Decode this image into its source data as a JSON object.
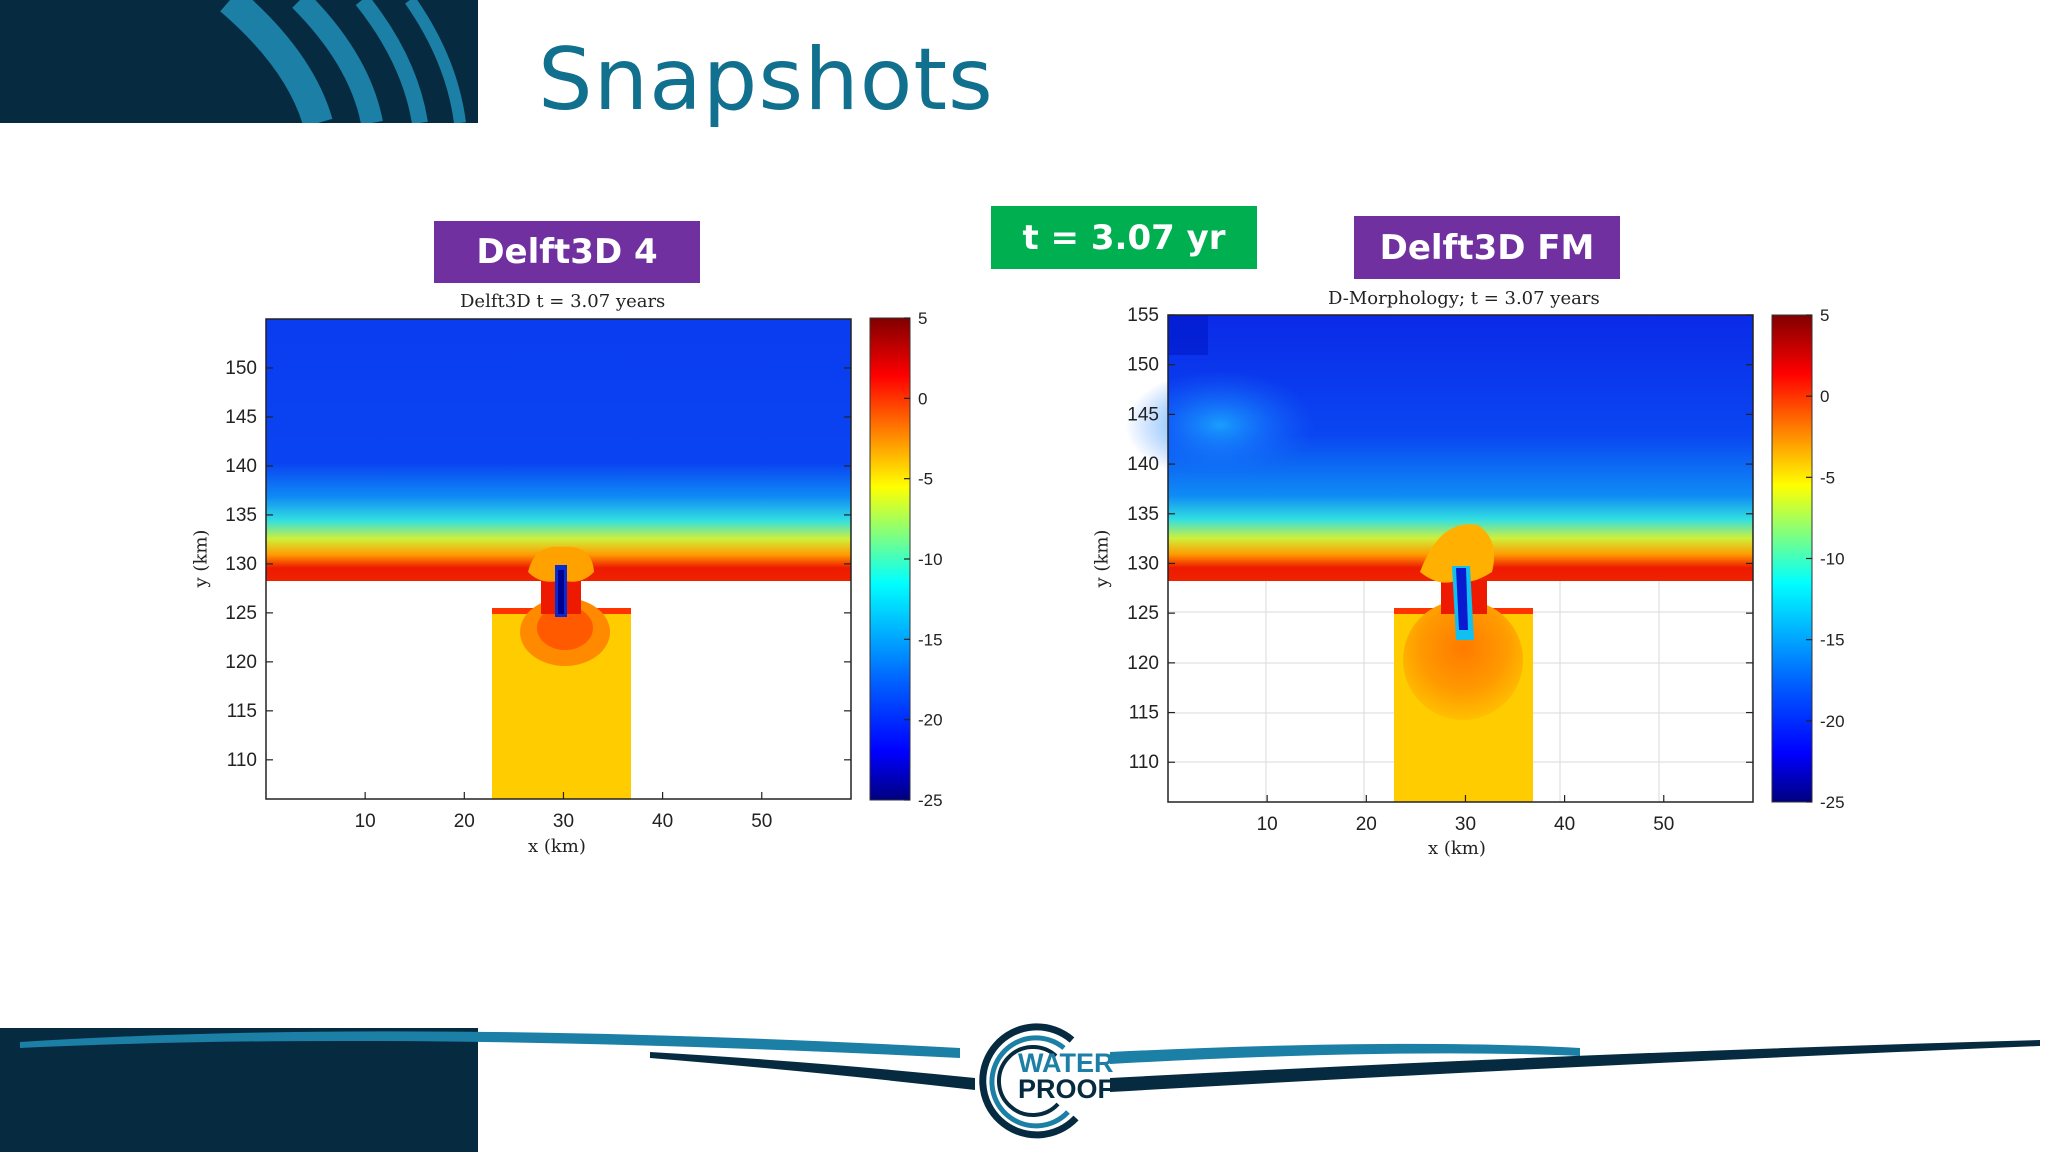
{
  "slide": {
    "title": "Snapshots",
    "label_left": "Delft3D 4",
    "label_right": "Delft3D FM",
    "label_time": "t = 3.07 yr",
    "accent_title": "#12708f",
    "label_purple": "#7030a0",
    "label_green": "#00b050",
    "logo_line1": "WATER",
    "logo_line2": "PROOF",
    "navy": "#062b40",
    "teal": "#1b7fa6"
  },
  "chart_data": [
    {
      "type": "heatmap",
      "title": "Delft3D t = 3.07 years",
      "xlabel": "x (km)",
      "ylabel": "y (km)",
      "xlim": [
        0,
        59
      ],
      "ylim": [
        106,
        155
      ],
      "xticks": [
        10,
        20,
        30,
        40,
        50
      ],
      "yticks": [
        110,
        115,
        120,
        125,
        130,
        135,
        140,
        145,
        150
      ],
      "colorbar": {
        "min": -25,
        "max": 5,
        "ticks": [
          5,
          0,
          -5,
          -10,
          -15,
          -20,
          -25
        ]
      },
      "grid": false
    },
    {
      "type": "heatmap",
      "title": "D-Morphology; t = 3.07 years",
      "xlabel": "x (km)",
      "ylabel": "y (km)",
      "xlim": [
        0,
        59
      ],
      "ylim": [
        106,
        155
      ],
      "xticks": [
        10,
        20,
        30,
        40,
        50
      ],
      "yticks": [
        110,
        115,
        120,
        125,
        130,
        135,
        140,
        145,
        150,
        155
      ],
      "colorbar": {
        "min": -25,
        "max": 5,
        "ticks": [
          5,
          0,
          -5,
          -10,
          -15,
          -20,
          -25
        ]
      },
      "grid": true
    }
  ]
}
